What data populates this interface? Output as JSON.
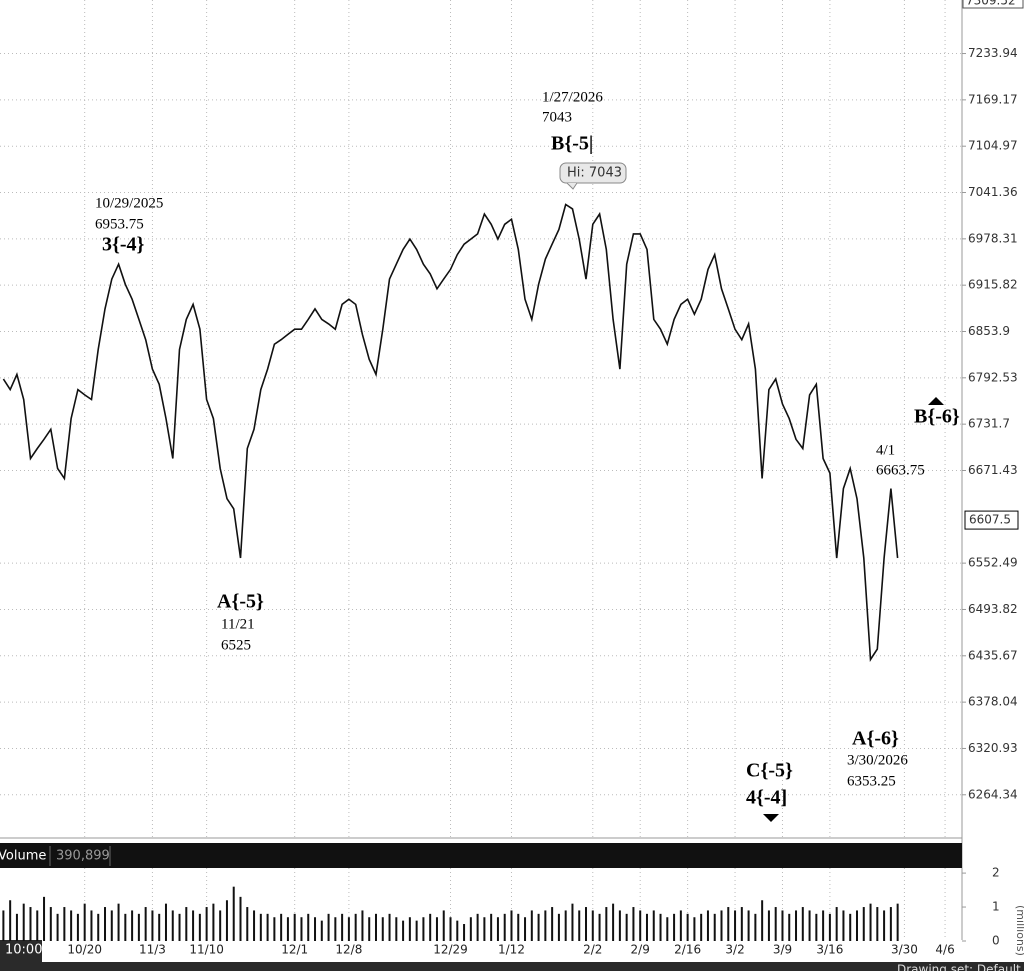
{
  "chart_data": [
    {
      "type": "line",
      "log_y": true,
      "grid": true,
      "color": "#111111",
      "ylim": [
        6212,
        7309.52
      ],
      "yticks": [
        7233.94,
        7169.17,
        7104.97,
        7041.36,
        6978.31,
        6915.82,
        6853.9,
        6792.53,
        6731.7,
        6671.43,
        6552.49,
        6493.82,
        6435.67,
        6378.04,
        6320.93,
        6264.34
      ],
      "last_price": 6607.5,
      "time_label": "10:00",
      "categories": [
        null,
        null,
        null,
        null,
        null,
        null,
        null,
        null,
        null,
        null,
        null,
        null,
        "10/20",
        null,
        null,
        null,
        null,
        null,
        null,
        null,
        null,
        null,
        "11/3",
        null,
        null,
        null,
        null,
        null,
        null,
        null,
        "11/10",
        null,
        null,
        null,
        null,
        null,
        null,
        null,
        null,
        null,
        null,
        null,
        null,
        "12/1",
        null,
        null,
        null,
        null,
        null,
        null,
        null,
        "12/8",
        null,
        null,
        null,
        null,
        null,
        null,
        null,
        null,
        null,
        null,
        null,
        null,
        null,
        null,
        "12/29",
        null,
        null,
        null,
        null,
        null,
        null,
        null,
        null,
        "1/12",
        null,
        null,
        null,
        null,
        null,
        null,
        null,
        null,
        null,
        null,
        null,
        "2/2",
        null,
        null,
        null,
        null,
        null,
        null,
        "2/9",
        null,
        null,
        null,
        null,
        null,
        null,
        "2/16",
        null,
        null,
        null,
        null,
        null,
        null,
        "3/2",
        null,
        null,
        null,
        null,
        null,
        null,
        "3/9",
        null,
        null,
        null,
        null,
        null,
        null,
        "3/16",
        null,
        null,
        null,
        null,
        null,
        null,
        null,
        null,
        null,
        null,
        "3/30",
        null,
        null,
        null,
        null,
        null,
        "4/6",
        null,
        null
      ],
      "values": [
        6791,
        6777,
        6797,
        6764,
        6687,
        6700,
        6712,
        6725,
        6674,
        6661,
        6739,
        6777,
        6770,
        6764,
        6830,
        6884,
        6924,
        6944,
        6917,
        6897,
        6870,
        6843,
        6804,
        6784,
        6739,
        6687,
        6830,
        6870,
        6890,
        6857,
        6764,
        6739,
        6674,
        6635,
        6622,
        6559,
        6700,
        6725,
        6777,
        6804,
        6837,
        6843,
        6850,
        6857,
        6857,
        6870,
        6884,
        6870,
        6864,
        6857,
        6890,
        6897,
        6890,
        6850,
        6817,
        6797,
        6857,
        6924,
        6944,
        6964,
        6978,
        6964,
        6944,
        6931,
        6911,
        6924,
        6937,
        6957,
        6971,
        6978,
        6985,
        7012,
        6998,
        6978,
        6998,
        7005,
        6964,
        6897,
        6870,
        6917,
        6951,
        6971,
        6991,
        7025,
        7019,
        6978,
        6924,
        6998,
        7012,
        6964,
        6870,
        6804,
        6944,
        6985,
        6985,
        6964,
        6870,
        6857,
        6837,
        6870,
        6890,
        6897,
        6877,
        6897,
        6937,
        6957,
        6911,
        6884,
        6857,
        6843,
        6864,
        6804,
        6661,
        6777,
        6791,
        6758,
        6739,
        6712,
        6700,
        6770,
        6784,
        6687,
        6668,
        6559,
        6648,
        6674,
        6635,
        6559,
        6431,
        6444,
        6559,
        6648,
        6559,
        null,
        null,
        null,
        null,
        null,
        null,
        null,
        null,
        null
      ],
      "annotations": [
        [
          "10/29/2025",
          "6953.75",
          "3{-4}"
        ],
        [
          "1/27/2026",
          "7043",
          "B{-5|"
        ],
        [
          "Hi: 7043"
        ],
        [
          "A{-5}",
          "11/21",
          "6525"
        ],
        [
          "C{-5}",
          "4{-4]"
        ],
        [
          "4/1",
          "6663.75"
        ],
        [
          "A{-6}",
          "3/30/2026",
          "6353.25"
        ],
        [
          "B{-6}"
        ]
      ]
    },
    {
      "type": "bar",
      "title": "Volume",
      "current_label": "390,899",
      "ylabel": "(millions)",
      "color": "#111111",
      "ylim": [
        0,
        2.15
      ],
      "yticks": [
        0,
        1,
        2
      ],
      "values": [
        0.9,
        1.2,
        0.8,
        1.1,
        1.0,
        0.9,
        1.3,
        1.0,
        0.8,
        1.0,
        0.9,
        0.8,
        1.1,
        0.9,
        0.8,
        1.0,
        0.9,
        1.1,
        0.8,
        0.9,
        0.8,
        1.0,
        0.9,
        0.8,
        1.1,
        0.9,
        0.8,
        1.0,
        0.9,
        0.8,
        1.0,
        1.1,
        0.9,
        1.2,
        1.6,
        1.3,
        1.0,
        0.9,
        0.8,
        0.8,
        0.7,
        0.8,
        0.7,
        0.8,
        0.7,
        0.8,
        0.7,
        0.6,
        0.8,
        0.7,
        0.8,
        0.7,
        0.8,
        0.9,
        0.7,
        0.8,
        0.7,
        0.8,
        0.7,
        0.6,
        0.7,
        0.6,
        0.7,
        0.8,
        0.7,
        0.9,
        0.7,
        0.6,
        0.5,
        0.7,
        0.8,
        0.7,
        0.8,
        0.7,
        0.8,
        0.9,
        0.8,
        0.7,
        0.9,
        0.8,
        0.9,
        1.0,
        0.8,
        0.9,
        1.1,
        0.9,
        1.0,
        0.9,
        0.8,
        1.0,
        1.1,
        0.9,
        0.8,
        1.0,
        0.9,
        0.8,
        0.9,
        0.8,
        0.7,
        0.8,
        0.9,
        0.8,
        0.7,
        0.8,
        0.9,
        0.8,
        0.9,
        1.0,
        0.9,
        1.0,
        0.9,
        0.8,
        1.2,
        0.9,
        1.0,
        0.9,
        0.8,
        0.9,
        1.0,
        0.9,
        0.8,
        0.9,
        0.8,
        1.0,
        0.9,
        0.8,
        0.9,
        1.0,
        1.1,
        1.0,
        0.9,
        1.0,
        1.1,
        null,
        null,
        null,
        null,
        null,
        null,
        null,
        null,
        null
      ]
    }
  ],
  "status_bar": {
    "drawing_set": "Drawing set: Default"
  }
}
